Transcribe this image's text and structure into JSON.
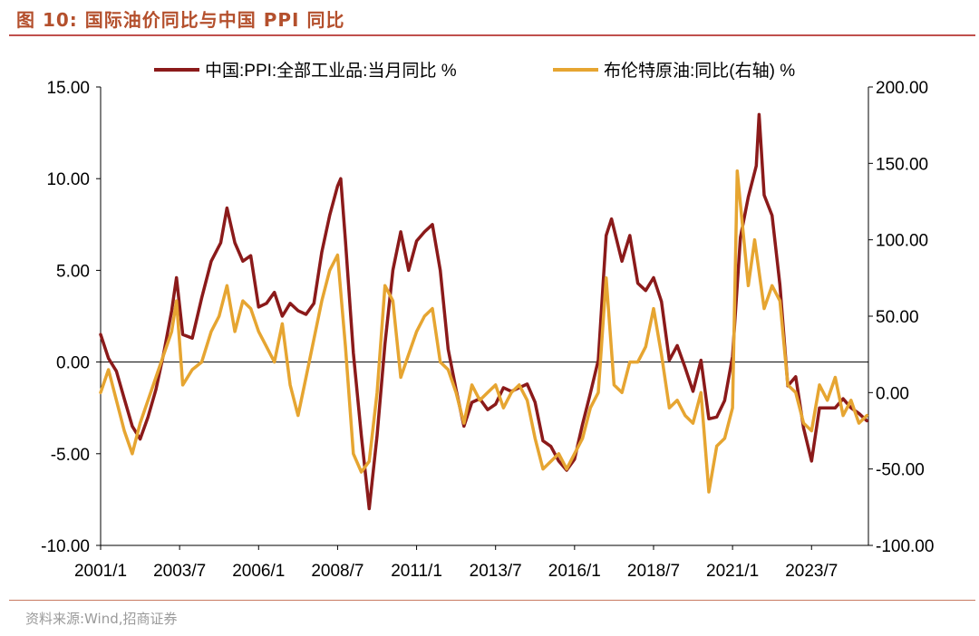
{
  "page": {
    "figure_title": "图 10:  国际油价同比与中国 PPI 同比",
    "source": "资料来源:Wind,招商证券"
  },
  "chart_data": {
    "type": "line",
    "x_tick_labels": [
      "2001/1",
      "2003/7",
      "2006/1",
      "2008/7",
      "2011/1",
      "2013/7",
      "2016/1",
      "2018/7",
      "2021/1",
      "2023/7"
    ],
    "x_range": [
      2001.0,
      2025.3
    ],
    "left_axis": {
      "ylim": [
        -10,
        15
      ],
      "ticks": [
        "-10.00",
        "-5.00",
        "0.00",
        "5.00",
        "10.00",
        "15.00"
      ]
    },
    "right_axis": {
      "ylim": [
        -100,
        200
      ],
      "ticks": [
        "-100.00",
        "-50.00",
        "0.00",
        "50.00",
        "100.00",
        "150.00",
        "200.00"
      ]
    },
    "zero_line": true,
    "grid": false,
    "legend_position": "top",
    "series": [
      {
        "name": "中国:PPI:全部工业品:当月同比 %",
        "axis": "left",
        "color": "#8b1a1a",
        "points": [
          [
            2001.0,
            1.5
          ],
          [
            2001.25,
            0.2
          ],
          [
            2001.5,
            -0.5
          ],
          [
            2001.75,
            -2.0
          ],
          [
            2002.0,
            -3.5
          ],
          [
            2002.25,
            -4.2
          ],
          [
            2002.5,
            -3.0
          ],
          [
            2002.75,
            -1.5
          ],
          [
            2003.0,
            0.5
          ],
          [
            2003.25,
            2.8
          ],
          [
            2003.4,
            4.6
          ],
          [
            2003.6,
            1.5
          ],
          [
            2003.9,
            1.3
          ],
          [
            2004.2,
            3.5
          ],
          [
            2004.5,
            5.5
          ],
          [
            2004.8,
            6.5
          ],
          [
            2005.0,
            8.4
          ],
          [
            2005.25,
            6.5
          ],
          [
            2005.5,
            5.5
          ],
          [
            2005.75,
            5.8
          ],
          [
            2006.0,
            3.0
          ],
          [
            2006.25,
            3.2
          ],
          [
            2006.5,
            3.8
          ],
          [
            2006.75,
            2.5
          ],
          [
            2007.0,
            3.2
          ],
          [
            2007.25,
            2.8
          ],
          [
            2007.5,
            2.6
          ],
          [
            2007.75,
            3.2
          ],
          [
            2008.0,
            6.0
          ],
          [
            2008.25,
            8.0
          ],
          [
            2008.5,
            9.6
          ],
          [
            2008.6,
            10.0
          ],
          [
            2008.75,
            6.6
          ],
          [
            2009.0,
            0.5
          ],
          [
            2009.25,
            -4.0
          ],
          [
            2009.5,
            -8.0
          ],
          [
            2009.75,
            -4.0
          ],
          [
            2010.0,
            1.0
          ],
          [
            2010.25,
            5.0
          ],
          [
            2010.5,
            7.1
          ],
          [
            2010.75,
            5.0
          ],
          [
            2011.0,
            6.6
          ],
          [
            2011.25,
            7.1
          ],
          [
            2011.5,
            7.5
          ],
          [
            2011.75,
            5.0
          ],
          [
            2012.0,
            0.7
          ],
          [
            2012.25,
            -1.5
          ],
          [
            2012.5,
            -3.5
          ],
          [
            2012.75,
            -2.2
          ],
          [
            2013.0,
            -2.0
          ],
          [
            2013.25,
            -2.6
          ],
          [
            2013.5,
            -2.3
          ],
          [
            2013.75,
            -1.4
          ],
          [
            2014.0,
            -1.6
          ],
          [
            2014.25,
            -1.4
          ],
          [
            2014.5,
            -1.2
          ],
          [
            2014.75,
            -2.2
          ],
          [
            2015.0,
            -4.3
          ],
          [
            2015.25,
            -4.6
          ],
          [
            2015.5,
            -5.4
          ],
          [
            2015.75,
            -5.9
          ],
          [
            2016.0,
            -5.3
          ],
          [
            2016.25,
            -3.4
          ],
          [
            2016.5,
            -1.7
          ],
          [
            2016.75,
            0.1
          ],
          [
            2017.0,
            6.9
          ],
          [
            2017.17,
            7.8
          ],
          [
            2017.5,
            5.5
          ],
          [
            2017.75,
            6.9
          ],
          [
            2018.0,
            4.3
          ],
          [
            2018.25,
            3.9
          ],
          [
            2018.5,
            4.6
          ],
          [
            2018.75,
            3.3
          ],
          [
            2019.0,
            0.1
          ],
          [
            2019.25,
            0.9
          ],
          [
            2019.5,
            -0.3
          ],
          [
            2019.75,
            -1.6
          ],
          [
            2020.0,
            0.1
          ],
          [
            2020.25,
            -3.1
          ],
          [
            2020.5,
            -3.0
          ],
          [
            2020.75,
            -2.1
          ],
          [
            2021.0,
            0.3
          ],
          [
            2021.25,
            6.8
          ],
          [
            2021.5,
            9.0
          ],
          [
            2021.75,
            10.7
          ],
          [
            2021.84,
            13.5
          ],
          [
            2022.0,
            9.1
          ],
          [
            2022.25,
            8.0
          ],
          [
            2022.5,
            4.2
          ],
          [
            2022.75,
            -1.3
          ],
          [
            2023.0,
            -0.8
          ],
          [
            2023.25,
            -3.6
          ],
          [
            2023.5,
            -5.4
          ],
          [
            2023.75,
            -2.5
          ],
          [
            2024.0,
            -2.5
          ],
          [
            2024.25,
            -2.5
          ],
          [
            2024.5,
            -2.0
          ],
          [
            2024.75,
            -2.5
          ],
          [
            2025.0,
            -2.8
          ],
          [
            2025.25,
            -3.2
          ]
        ]
      },
      {
        "name": "布伦特原油:同比(右轴) %",
        "axis": "right",
        "color": "#e6a531",
        "points": [
          [
            2001.0,
            0.0
          ],
          [
            2001.25,
            15.0
          ],
          [
            2001.5,
            -5.0
          ],
          [
            2001.75,
            -25.0
          ],
          [
            2002.0,
            -40.0
          ],
          [
            2002.25,
            -20.0
          ],
          [
            2002.5,
            -5.0
          ],
          [
            2002.75,
            10.0
          ],
          [
            2003.0,
            25.0
          ],
          [
            2003.25,
            40.0
          ],
          [
            2003.4,
            60.0
          ],
          [
            2003.6,
            5.0
          ],
          [
            2003.9,
            15.0
          ],
          [
            2004.2,
            20.0
          ],
          [
            2004.5,
            40.0
          ],
          [
            2004.75,
            50.0
          ],
          [
            2005.0,
            70.0
          ],
          [
            2005.25,
            40.0
          ],
          [
            2005.5,
            60.0
          ],
          [
            2005.75,
            55.0
          ],
          [
            2006.0,
            40.0
          ],
          [
            2006.25,
            30.0
          ],
          [
            2006.5,
            20.0
          ],
          [
            2006.75,
            45.0
          ],
          [
            2007.0,
            5.0
          ],
          [
            2007.25,
            -15.0
          ],
          [
            2007.5,
            10.0
          ],
          [
            2007.75,
            35.0
          ],
          [
            2008.0,
            60.0
          ],
          [
            2008.25,
            80.0
          ],
          [
            2008.5,
            90.0
          ],
          [
            2008.75,
            30.0
          ],
          [
            2009.0,
            -40.0
          ],
          [
            2009.25,
            -52.0
          ],
          [
            2009.5,
            -45.0
          ],
          [
            2009.75,
            0.0
          ],
          [
            2010.0,
            70.0
          ],
          [
            2010.25,
            60.0
          ],
          [
            2010.5,
            10.0
          ],
          [
            2010.75,
            25.0
          ],
          [
            2011.0,
            40.0
          ],
          [
            2011.25,
            50.0
          ],
          [
            2011.5,
            55.0
          ],
          [
            2011.75,
            20.0
          ],
          [
            2012.0,
            15.0
          ],
          [
            2012.25,
            0.0
          ],
          [
            2012.5,
            -20.0
          ],
          [
            2012.75,
            5.0
          ],
          [
            2013.0,
            -5.0
          ],
          [
            2013.25,
            0.0
          ],
          [
            2013.5,
            5.0
          ],
          [
            2013.75,
            -10.0
          ],
          [
            2014.0,
            0.0
          ],
          [
            2014.25,
            5.0
          ],
          [
            2014.5,
            -5.0
          ],
          [
            2014.75,
            -30.0
          ],
          [
            2015.0,
            -50.0
          ],
          [
            2015.25,
            -45.0
          ],
          [
            2015.5,
            -40.0
          ],
          [
            2015.75,
            -50.0
          ],
          [
            2016.0,
            -40.0
          ],
          [
            2016.25,
            -30.0
          ],
          [
            2016.5,
            -10.0
          ],
          [
            2016.75,
            0.0
          ],
          [
            2017.0,
            75.0
          ],
          [
            2017.25,
            5.0
          ],
          [
            2017.5,
            0.0
          ],
          [
            2017.75,
            20.0
          ],
          [
            2018.0,
            20.0
          ],
          [
            2018.25,
            30.0
          ],
          [
            2018.5,
            55.0
          ],
          [
            2018.75,
            25.0
          ],
          [
            2019.0,
            -10.0
          ],
          [
            2019.25,
            -5.0
          ],
          [
            2019.5,
            -15.0
          ],
          [
            2019.75,
            -20.0
          ],
          [
            2020.0,
            0.0
          ],
          [
            2020.25,
            -65.0
          ],
          [
            2020.5,
            -35.0
          ],
          [
            2020.75,
            -30.0
          ],
          [
            2021.0,
            -10.0
          ],
          [
            2021.15,
            145.0
          ],
          [
            2021.5,
            70.0
          ],
          [
            2021.7,
            100.0
          ],
          [
            2022.0,
            55.0
          ],
          [
            2022.25,
            70.0
          ],
          [
            2022.5,
            60.0
          ],
          [
            2022.75,
            5.0
          ],
          [
            2023.0,
            0.0
          ],
          [
            2023.25,
            -20.0
          ],
          [
            2023.5,
            -25.0
          ],
          [
            2023.75,
            5.0
          ],
          [
            2024.0,
            -5.0
          ],
          [
            2024.25,
            10.0
          ],
          [
            2024.5,
            -15.0
          ],
          [
            2024.75,
            -5.0
          ],
          [
            2025.0,
            -20.0
          ],
          [
            2025.25,
            -15.0
          ]
        ]
      }
    ]
  }
}
